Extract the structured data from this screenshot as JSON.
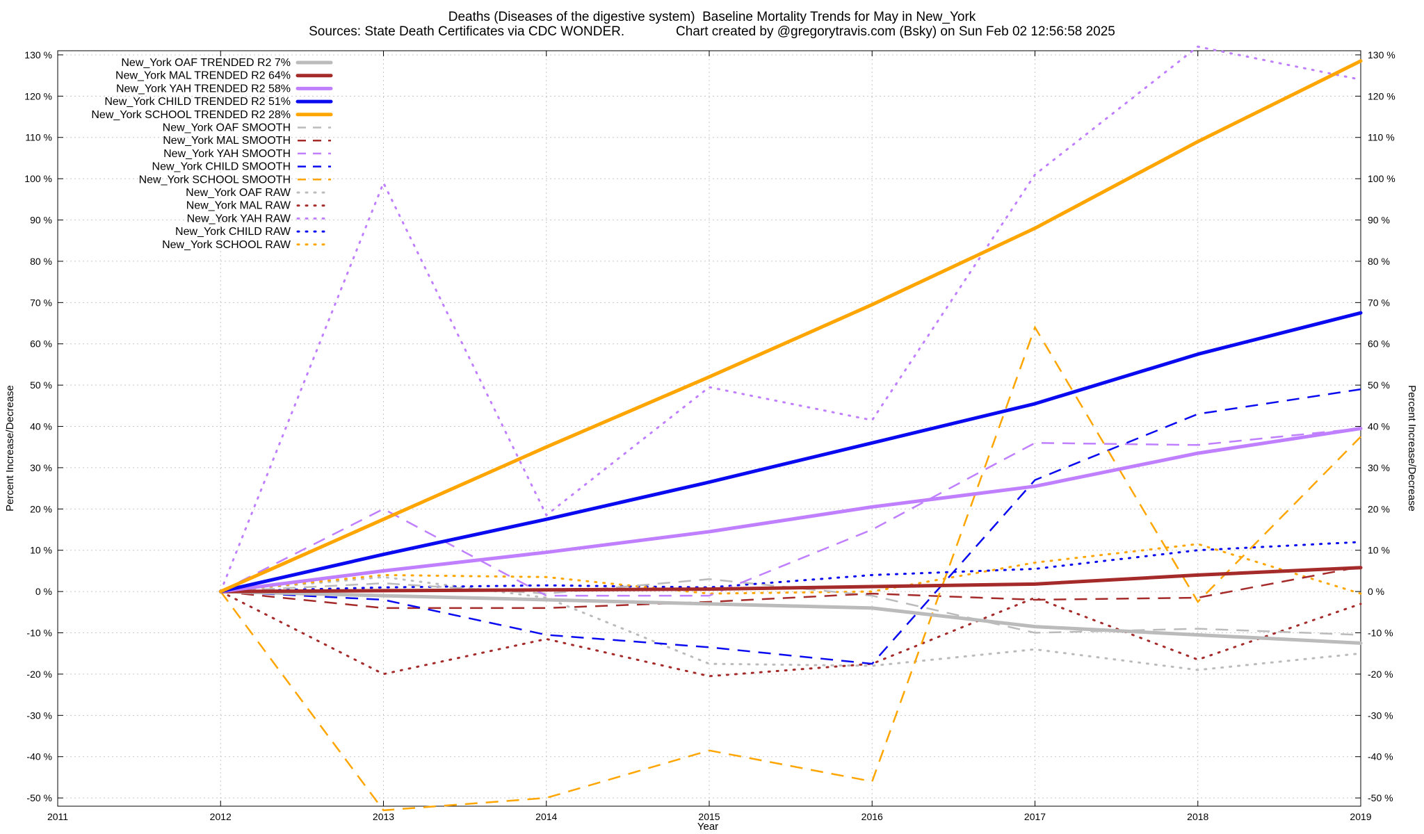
{
  "chart_data": {
    "type": "line",
    "title": "Deaths (Diseases of the digestive system)  Baseline Mortality Trends for May in New_York",
    "subtitle": "Sources: State Death Certificates via CDC WONDER.              Chart created by @gregorytravis.com (Bsky) on Sun Feb 02 12:56:58 2025",
    "xlabel": "Year",
    "ylabel": "Percent Increase/Decrease",
    "y2label": "Percent Increase/Decrease",
    "xlim": [
      2011,
      2019
    ],
    "ylim": [
      -52,
      131
    ],
    "x_ticks": [
      "2011",
      "2012",
      "2013",
      "2014",
      "2015",
      "2016",
      "2017",
      "2018",
      "2019"
    ],
    "y_ticks": [
      "130 %",
      "120 %",
      "110 %",
      "100 %",
      "90 %",
      "80 %",
      "70 %",
      "60 %",
      "50 %",
      "40 %",
      "30 %",
      "20 %",
      "10 %",
      "0 %",
      "-10 %",
      "-20 %",
      "-30 %",
      "-40 %",
      "-50 %"
    ],
    "legend_position": "top-left",
    "grid": true,
    "series": [
      {
        "name": "New_York OAF TRENDED R2  7%",
        "style": "solid",
        "color": "#bbbbbb",
        "x": [
          2012,
          2013,
          2014,
          2015,
          2016,
          2017,
          2018,
          2019
        ],
        "values": [
          0,
          -1,
          -2,
          -3,
          -4,
          -8.5,
          -10.5,
          -12.5
        ]
      },
      {
        "name": "New_York MAL TRENDED R2  64%",
        "style": "solid",
        "color": "#a52a2a",
        "x": [
          2012,
          2013,
          2014,
          2015,
          2016,
          2017,
          2018,
          2019
        ],
        "values": [
          0,
          0.2,
          0.4,
          0.6,
          1.2,
          1.8,
          4,
          5.8
        ]
      },
      {
        "name": "New_York YAH TRENDED R2  58%",
        "style": "solid",
        "color": "#bf7fff",
        "x": [
          2012,
          2013,
          2014,
          2015,
          2016,
          2017,
          2018,
          2019
        ],
        "values": [
          0,
          5,
          9.5,
          14.5,
          20.5,
          25.5,
          33.5,
          39.5
        ]
      },
      {
        "name": "New_York CHILD TRENDED R2  51%",
        "style": "solid",
        "color": "#0a0af0",
        "x": [
          2012,
          2013,
          2014,
          2015,
          2016,
          2017,
          2018,
          2019
        ],
        "values": [
          0,
          9,
          17.5,
          26.5,
          36,
          45.5,
          57.5,
          67.5
        ]
      },
      {
        "name": "New_York SCHOOL TRENDED R2  28%",
        "style": "solid",
        "color": "#ffa500",
        "x": [
          2012,
          2013,
          2014,
          2015,
          2016,
          2017,
          2018,
          2019
        ],
        "values": [
          0,
          17.5,
          35,
          52,
          69.5,
          88,
          109,
          128.5
        ]
      },
      {
        "name": "New_York OAF SMOOTH",
        "style": "dashed",
        "color": "#bbbbbb",
        "x": [
          2012,
          2013,
          2014,
          2015,
          2016,
          2017,
          2018,
          2019
        ],
        "values": [
          0,
          2,
          -0.5,
          3,
          -1,
          -10,
          -9,
          -10.5
        ]
      },
      {
        "name": "New_York MAL SMOOTH",
        "style": "dashed",
        "color": "#a52a2a",
        "x": [
          2012,
          2013,
          2014,
          2015,
          2016,
          2017,
          2018,
          2019
        ],
        "values": [
          0,
          -4,
          -4,
          -2.5,
          -0.5,
          -2,
          -1.5,
          6
        ]
      },
      {
        "name": "New_York YAH SMOOTH",
        "style": "dashed",
        "color": "#bf7fff",
        "x": [
          2012,
          2013,
          2014,
          2015,
          2016,
          2017,
          2018,
          2019
        ],
        "values": [
          0,
          20,
          -1,
          -1,
          15,
          36,
          35.5,
          39.5
        ]
      },
      {
        "name": "New_York CHILD SMOOTH",
        "style": "dashed",
        "color": "#0a0af0",
        "x": [
          2012,
          2013,
          2014,
          2015,
          2016,
          2017,
          2018,
          2019
        ],
        "values": [
          0,
          -2,
          -10.5,
          -13.5,
          -17.5,
          27,
          43,
          49
        ]
      },
      {
        "name": "New_York SCHOOL SMOOTH",
        "style": "dashed",
        "color": "#ffa500",
        "x": [
          2012,
          2013,
          2014,
          2015,
          2016,
          2017,
          2018,
          2019
        ],
        "values": [
          0,
          -53,
          -50,
          -38.5,
          -46,
          64,
          -2.5,
          37.5
        ]
      },
      {
        "name": "New_York OAF RAW",
        "style": "dotted",
        "color": "#bbbbbb",
        "x": [
          2012,
          2013,
          2014,
          2015,
          2016,
          2017,
          2018,
          2019
        ],
        "values": [
          0,
          3.5,
          -1.5,
          -17.5,
          -18,
          -14,
          -19,
          -15
        ]
      },
      {
        "name": "New_York MAL RAW",
        "style": "dotted",
        "color": "#a52a2a",
        "x": [
          2012,
          2013,
          2014,
          2015,
          2016,
          2017,
          2018,
          2019
        ],
        "values": [
          0,
          -20,
          -11.5,
          -20.5,
          -17.5,
          -1.5,
          -16.5,
          -3
        ]
      },
      {
        "name": "New_York YAH RAW",
        "style": "dotted",
        "color": "#bf7fff",
        "x": [
          2012,
          2013,
          2014,
          2015,
          2016,
          2017,
          2018,
          2019
        ],
        "values": [
          0,
          99,
          18.5,
          49.5,
          41.5,
          101,
          132,
          124
        ]
      },
      {
        "name": "New_York CHILD RAW",
        "style": "dotted",
        "color": "#0a0af0",
        "x": [
          2012,
          2013,
          2014,
          2015,
          2016,
          2017,
          2018,
          2019
        ],
        "values": [
          0,
          1,
          1.5,
          1,
          4,
          5.5,
          10,
          12
        ]
      },
      {
        "name": "New_York SCHOOL RAW",
        "style": "dotted",
        "color": "#ffa500",
        "x": [
          2012,
          2013,
          2014,
          2015,
          2016,
          2017,
          2018,
          2019
        ],
        "values": [
          0,
          4,
          3.5,
          -0.5,
          0,
          7,
          11.5,
          -0.5
        ]
      }
    ]
  }
}
